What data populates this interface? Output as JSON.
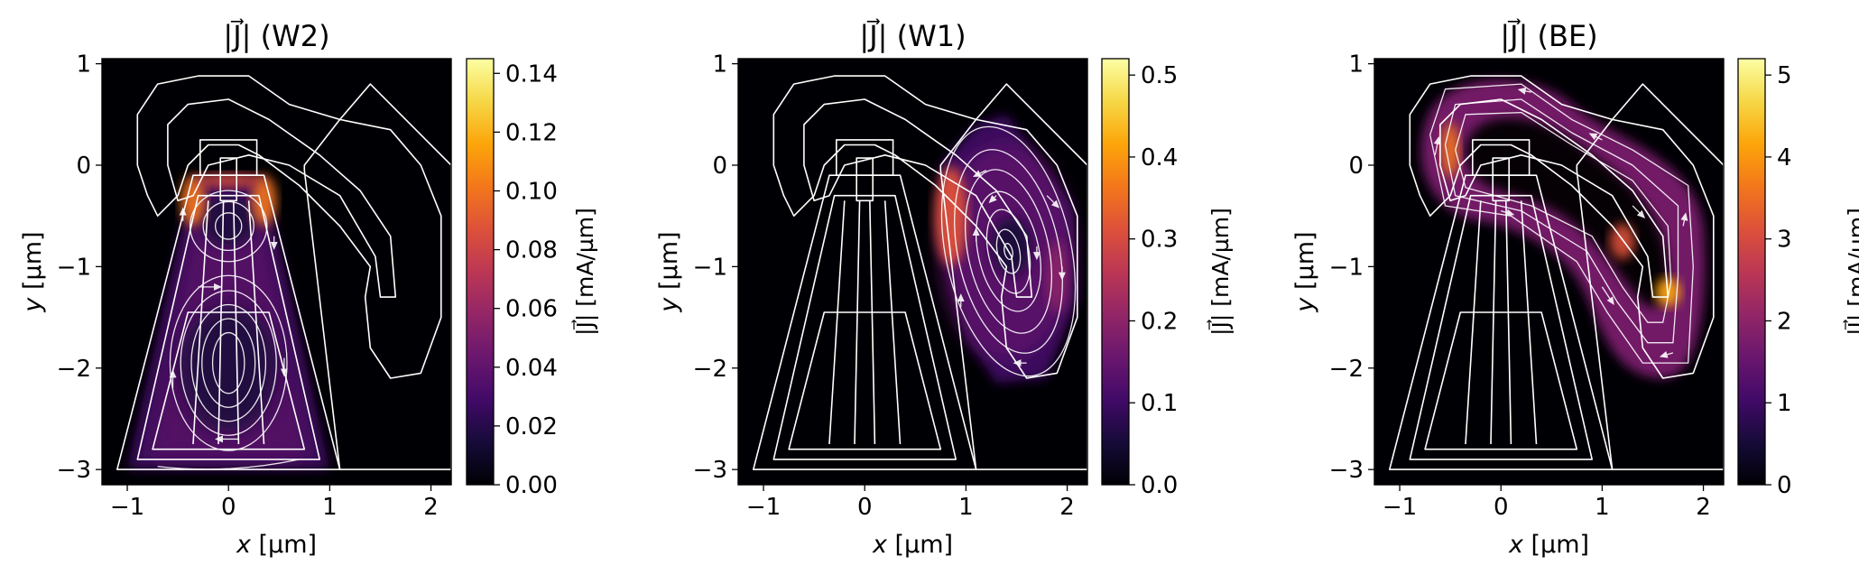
{
  "figure": {
    "background": "#ffffff"
  },
  "chart_data": [
    {
      "type": "heatmap",
      "panel": "W2",
      "title_prefix": "|J⃗| ",
      "title": "(W2)",
      "xlabel_var": "x",
      "xlabel_unit": " [µm]",
      "ylabel_var": "y",
      "ylabel_unit": " [µm]",
      "xlim": [
        -1.25,
        2.2
      ],
      "ylim": [
        -3.15,
        1.05
      ],
      "xticks": [
        -1,
        0,
        1,
        2
      ],
      "yticks": [
        -3,
        -2,
        -1,
        0,
        1
      ],
      "colormap": "inferno",
      "colorbar": {
        "label": "|J⃗| [mA/µm]",
        "min": 0,
        "max": 0.145,
        "ticks": [
          "0.00",
          "0.02",
          "0.04",
          "0.06",
          "0.08",
          "0.10",
          "0.12",
          "0.14"
        ],
        "tick_values": [
          0,
          0.02,
          0.04,
          0.06,
          0.08,
          0.1,
          0.12,
          0.14
        ]
      },
      "current_region": "bottom trapezoid (x -0.8..0.85, y -3..-0.1)",
      "peak_value": 0.145
    },
    {
      "type": "heatmap",
      "panel": "W1",
      "title_prefix": "|J⃗| ",
      "title": "(W1)",
      "xlabel_var": "x",
      "xlabel_unit": " [µm]",
      "ylabel_var": "y",
      "ylabel_unit": " [µm]",
      "xlim": [
        -1.25,
        2.2
      ],
      "ylim": [
        -3.15,
        1.05
      ],
      "xticks": [
        -1,
        0,
        1,
        2
      ],
      "yticks": [
        -3,
        -2,
        -1,
        0,
        1
      ],
      "colormap": "inferno",
      "colorbar": {
        "label": "|J⃗| [mA/µm]",
        "min": 0,
        "max": 0.52,
        "ticks": [
          "0.0",
          "0.1",
          "0.2",
          "0.3",
          "0.4",
          "0.5"
        ],
        "tick_values": [
          0,
          0.1,
          0.2,
          0.3,
          0.4,
          0.5
        ]
      },
      "current_region": "vortex centred near (1.4, -0.8)",
      "peak_value": 0.52
    },
    {
      "type": "heatmap",
      "panel": "BE",
      "title_prefix": "|J⃗| ",
      "title": "(BE)",
      "xlabel_var": "x",
      "xlabel_unit": " [µm]",
      "ylabel_var": "y",
      "ylabel_unit": " [µm]",
      "xlim": [
        -1.25,
        2.2
      ],
      "ylim": [
        -3.15,
        1.05
      ],
      "xticks": [
        -1,
        0,
        1,
        2
      ],
      "yticks": [
        -3,
        -2,
        -1,
        0,
        1
      ],
      "colormap": "inferno",
      "colorbar": {
        "label": "|J⃗| [mA/µm]",
        "min": 0,
        "max": 5.2,
        "ticks": [
          "0",
          "1",
          "2",
          "3",
          "4",
          "5"
        ],
        "tick_values": [
          0,
          1,
          2,
          3,
          4,
          5
        ]
      },
      "current_region": "curved band (hook-shaped) from (-0.8,0.3) to (1.8,-2.0)",
      "peak_value": 5.2
    }
  ],
  "device_outline": {
    "loop_outer": [
      [
        -0.9,
        0.0
      ],
      [
        -0.9,
        0.5
      ],
      [
        -0.7,
        0.8
      ],
      [
        -0.3,
        0.88
      ],
      [
        0.2,
        0.88
      ],
      [
        0.6,
        0.6
      ],
      [
        1.1,
        0.45
      ],
      [
        1.6,
        0.35
      ],
      [
        1.9,
        0.0
      ],
      [
        2.1,
        -0.5
      ],
      [
        2.1,
        -1.5
      ],
      [
        1.9,
        -2.05
      ],
      [
        1.6,
        -2.1
      ],
      [
        1.4,
        -1.8
      ],
      [
        1.35,
        -1.3
      ],
      [
        1.4,
        -1.0
      ],
      [
        1.1,
        -0.6
      ],
      [
        0.7,
        -0.2
      ],
      [
        0.3,
        0.1
      ],
      [
        0.1,
        0.2
      ],
      [
        -0.2,
        0.2
      ],
      [
        -0.4,
        0.0
      ],
      [
        -0.5,
        -0.3
      ],
      [
        -0.7,
        -0.5
      ],
      [
        -0.8,
        -0.3
      ],
      [
        -0.9,
        0.0
      ]
    ],
    "loop_inner": [
      [
        -0.6,
        0.0
      ],
      [
        -0.6,
        0.4
      ],
      [
        -0.4,
        0.6
      ],
      [
        0.0,
        0.65
      ],
      [
        0.4,
        0.45
      ],
      [
        0.9,
        0.1
      ],
      [
        1.3,
        -0.25
      ],
      [
        1.6,
        -0.7
      ],
      [
        1.65,
        -1.3
      ],
      [
        1.5,
        -1.3
      ],
      [
        1.45,
        -0.9
      ],
      [
        1.1,
        -0.3
      ],
      [
        0.6,
        0.0
      ],
      [
        0.2,
        0.1
      ],
      [
        -0.2,
        0.0
      ],
      [
        -0.35,
        -0.3
      ],
      [
        -0.5,
        -0.35
      ],
      [
        -0.6,
        0.0
      ]
    ],
    "outer_trapezoid": [
      [
        -1.1,
        -3.0
      ],
      [
        1.1,
        -3.0
      ],
      [
        0.35,
        -0.1
      ],
      [
        -0.35,
        -0.1
      ]
    ],
    "mid_trapezoid": [
      [
        -0.9,
        -2.9
      ],
      [
        0.9,
        -2.9
      ],
      [
        0.3,
        -0.3
      ],
      [
        -0.3,
        -0.3
      ]
    ],
    "inner_trapezoid": [
      [
        -0.75,
        -2.8
      ],
      [
        0.75,
        -2.8
      ],
      [
        0.4,
        -1.45
      ],
      [
        -0.4,
        -1.45
      ]
    ],
    "top_rect": [
      [
        -0.28,
        0.25
      ],
      [
        0.28,
        0.25
      ],
      [
        0.28,
        -0.1
      ],
      [
        -0.28,
        -0.1
      ]
    ],
    "stub_rect": [
      [
        -0.08,
        0.07
      ],
      [
        0.08,
        0.07
      ],
      [
        0.08,
        -0.35
      ],
      [
        -0.08,
        -0.35
      ]
    ],
    "strips": [
      [
        [
          -0.35,
          -2.75
        ],
        [
          -0.2,
          -0.35
        ]
      ],
      [
        [
          -0.1,
          -2.75
        ],
        [
          -0.05,
          -0.35
        ]
      ],
      [
        [
          0.1,
          -2.75
        ],
        [
          0.05,
          -0.35
        ]
      ],
      [
        [
          0.35,
          -2.75
        ],
        [
          0.2,
          -0.35
        ]
      ]
    ],
    "right_ground": [
      [
        0.75,
        0.0
      ],
      [
        1.1,
        0.45
      ],
      [
        1.4,
        0.8
      ],
      [
        2.2,
        0.0
      ],
      [
        2.2,
        -3.0
      ],
      [
        1.6,
        -3.0
      ],
      [
        1.1,
        -3.0
      ],
      [
        0.75,
        -0.05
      ]
    ]
  }
}
